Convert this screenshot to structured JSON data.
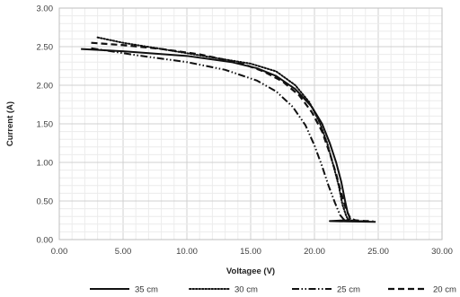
{
  "chart_data": {
    "type": "line",
    "xlabel": "Voltagee (V)",
    "ylabel": "Current (A)",
    "xlim": [
      0,
      30
    ],
    "ylim": [
      0,
      3
    ],
    "x_ticks": [
      "0.00",
      "5.00",
      "10.00",
      "15.00",
      "20.00",
      "25.00",
      "30.00"
    ],
    "y_ticks": [
      "0.00",
      "0.50",
      "1.00",
      "1.50",
      "2.00",
      "2.50",
      "3.00"
    ],
    "grid": true,
    "legend_position": "bottom",
    "series": [
      {
        "name": "35 cm",
        "style": "solid",
        "points": [
          [
            1.7,
            2.47
          ],
          [
            5,
            2.44
          ],
          [
            10,
            2.38
          ],
          [
            13.5,
            2.3
          ],
          [
            15.5,
            2.22
          ],
          [
            17,
            2.12
          ],
          [
            18.5,
            1.95
          ],
          [
            19.8,
            1.72
          ],
          [
            20.6,
            1.5
          ],
          [
            21.2,
            1.25
          ],
          [
            21.7,
            1.0
          ],
          [
            22.1,
            0.75
          ],
          [
            22.4,
            0.5
          ],
          [
            22.6,
            0.35
          ],
          [
            22.8,
            0.27
          ],
          [
            22.5,
            0.25
          ],
          [
            21.2,
            0.24
          ],
          [
            22.5,
            0.235
          ],
          [
            24.8,
            0.23
          ]
        ]
      },
      {
        "name": "30 cm",
        "style": "dotted",
        "points": [
          [
            3,
            2.62
          ],
          [
            5,
            2.55
          ],
          [
            8,
            2.47
          ],
          [
            12,
            2.36
          ],
          [
            15,
            2.28
          ],
          [
            17,
            2.18
          ],
          [
            18.5,
            2.0
          ],
          [
            19.6,
            1.78
          ],
          [
            20.4,
            1.52
          ],
          [
            21,
            1.25
          ],
          [
            21.5,
            0.95
          ],
          [
            21.9,
            0.7
          ],
          [
            22.2,
            0.45
          ],
          [
            22.5,
            0.3
          ],
          [
            22.7,
            0.25
          ],
          [
            23.5,
            0.24
          ],
          [
            24.2,
            0.235
          ]
        ]
      },
      {
        "name": "25 cm",
        "style": "dash-dot-dot",
        "points": [
          [
            2.5,
            2.48
          ],
          [
            6,
            2.39
          ],
          [
            10,
            2.3
          ],
          [
            13,
            2.2
          ],
          [
            15.5,
            2.06
          ],
          [
            17,
            1.92
          ],
          [
            18.3,
            1.72
          ],
          [
            19.3,
            1.48
          ],
          [
            20,
            1.22
          ],
          [
            20.6,
            0.95
          ],
          [
            21.1,
            0.7
          ],
          [
            21.6,
            0.48
          ],
          [
            22,
            0.32
          ],
          [
            22.3,
            0.26
          ],
          [
            23,
            0.24
          ],
          [
            23.8,
            0.235
          ]
        ]
      },
      {
        "name": "20 cm",
        "style": "dashed",
        "points": [
          [
            2.5,
            2.55
          ],
          [
            5,
            2.52
          ],
          [
            8,
            2.47
          ],
          [
            11,
            2.4
          ],
          [
            13,
            2.33
          ],
          [
            14.5,
            2.27
          ],
          [
            16,
            2.18
          ],
          [
            17.5,
            2.05
          ],
          [
            18.8,
            1.87
          ],
          [
            19.8,
            1.65
          ],
          [
            20.6,
            1.4
          ],
          [
            21.2,
            1.12
          ],
          [
            21.7,
            0.85
          ],
          [
            22.1,
            0.6
          ],
          [
            22.5,
            0.38
          ],
          [
            22.8,
            0.28
          ],
          [
            23.2,
            0.25
          ],
          [
            24,
            0.24
          ],
          [
            24.6,
            0.24
          ]
        ]
      }
    ]
  }
}
